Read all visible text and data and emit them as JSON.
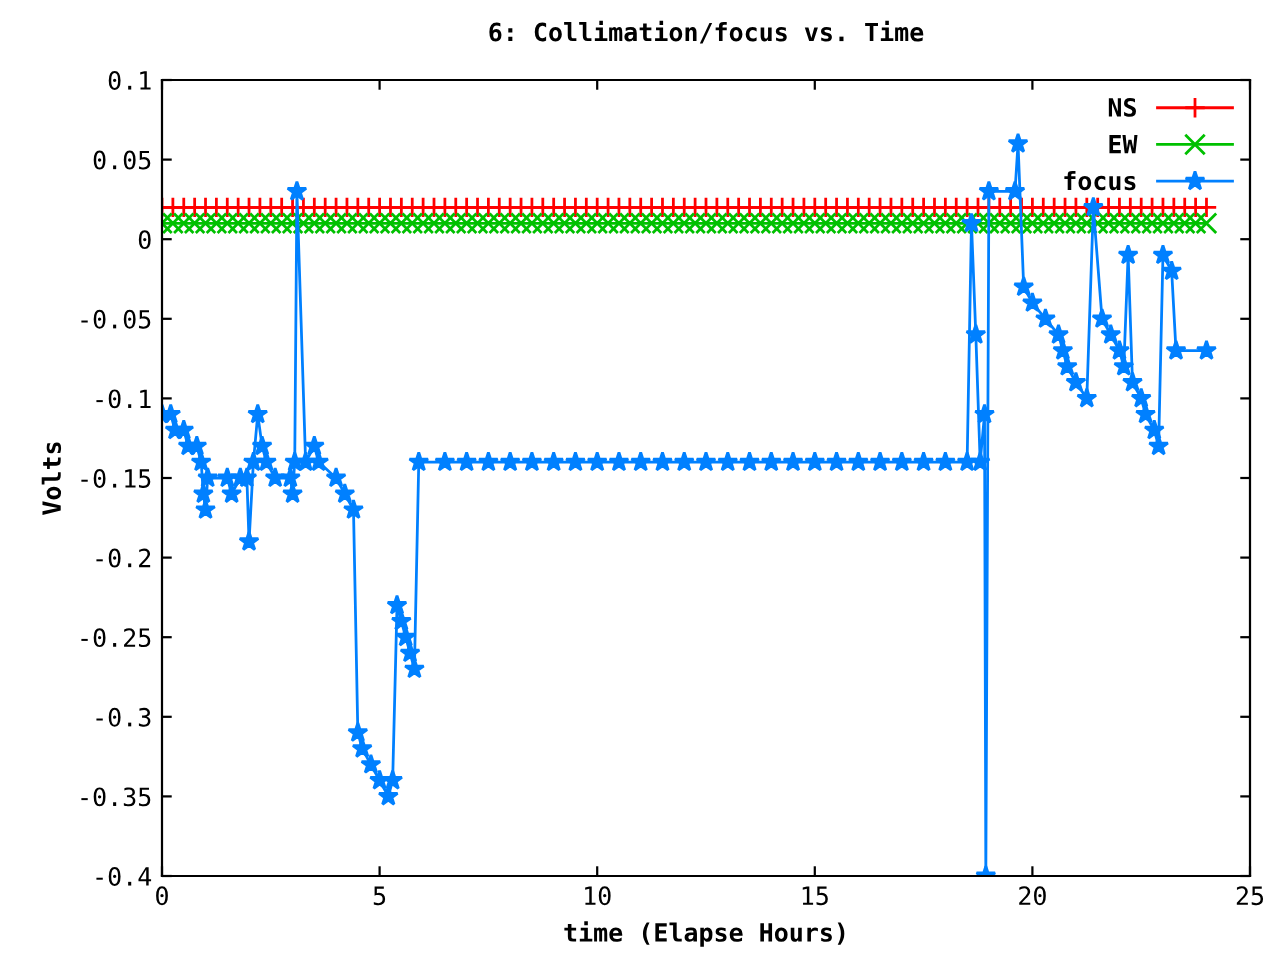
{
  "chart_data": {
    "type": "line",
    "title": "6: Collimation/focus vs. Time",
    "xlabel": "time (Elapse Hours)",
    "ylabel": "Volts",
    "xlim": [
      0,
      25
    ],
    "xticks": [
      0,
      5,
      10,
      15,
      20,
      25
    ],
    "ylim": [
      -0.4,
      0.1
    ],
    "yticks": [
      -0.4,
      -0.35,
      -0.3,
      -0.25,
      -0.2,
      -0.15,
      -0.1,
      -0.05,
      0,
      0.05,
      0.1
    ],
    "grid": false,
    "legend": "top right",
    "series": [
      {
        "name": "NS",
        "color": "#ff0000",
        "marker": "cross",
        "x": [
          0,
          0.25,
          0.5,
          0.75,
          1,
          1.25,
          1.5,
          1.75,
          2,
          2.25,
          2.5,
          2.75,
          3,
          3.25,
          3.5,
          3.75,
          4,
          4.25,
          4.5,
          4.75,
          5,
          5.25,
          5.5,
          5.75,
          6,
          6.25,
          6.5,
          6.75,
          7,
          7.25,
          7.5,
          7.75,
          8,
          8.25,
          8.5,
          8.75,
          9,
          9.25,
          9.5,
          9.75,
          10,
          10.25,
          10.5,
          10.75,
          11,
          11.25,
          11.5,
          11.75,
          12,
          12.25,
          12.5,
          12.75,
          13,
          13.25,
          13.5,
          13.75,
          14,
          14.25,
          14.5,
          14.75,
          15,
          15.25,
          15.5,
          15.75,
          16,
          16.25,
          16.5,
          16.75,
          17,
          17.25,
          17.5,
          17.75,
          18,
          18.25,
          18.5,
          18.75,
          19,
          19.25,
          19.5,
          19.75,
          20,
          20.25,
          20.5,
          20.75,
          21,
          21.25,
          21.5,
          21.75,
          22,
          22.25,
          22.5,
          22.75,
          23,
          23.25,
          23.5,
          23.75,
          24
        ],
        "values": [
          0.02,
          0.02,
          0.02,
          0.02,
          0.02,
          0.02,
          0.02,
          0.02,
          0.02,
          0.02,
          0.02,
          0.02,
          0.02,
          0.02,
          0.02,
          0.02,
          0.02,
          0.02,
          0.02,
          0.02,
          0.02,
          0.02,
          0.02,
          0.02,
          0.02,
          0.02,
          0.02,
          0.02,
          0.02,
          0.02,
          0.02,
          0.02,
          0.02,
          0.02,
          0.02,
          0.02,
          0.02,
          0.02,
          0.02,
          0.02,
          0.02,
          0.02,
          0.02,
          0.02,
          0.02,
          0.02,
          0.02,
          0.02,
          0.02,
          0.02,
          0.02,
          0.02,
          0.02,
          0.02,
          0.02,
          0.02,
          0.02,
          0.02,
          0.02,
          0.02,
          0.02,
          0.02,
          0.02,
          0.02,
          0.02,
          0.02,
          0.02,
          0.02,
          0.02,
          0.02,
          0.02,
          0.02,
          0.02,
          0.02,
          0.02,
          0.02,
          0.02,
          0.02,
          0.02,
          0.02,
          0.02,
          0.02,
          0.02,
          0.02,
          0.02,
          0.02,
          0.02,
          0.02,
          0.02,
          0.02,
          0.02,
          0.02,
          0.02,
          0.02,
          0.02,
          0.02,
          0.02
        ]
      },
      {
        "name": "EW",
        "color": "#00c000",
        "marker": "cross",
        "x": [
          0,
          0.25,
          0.5,
          0.75,
          1,
          1.25,
          1.5,
          1.75,
          2,
          2.25,
          2.5,
          2.75,
          3,
          3.25,
          3.5,
          3.75,
          4,
          4.25,
          4.5,
          4.75,
          5,
          5.25,
          5.5,
          5.75,
          6,
          6.25,
          6.5,
          6.75,
          7,
          7.25,
          7.5,
          7.75,
          8,
          8.25,
          8.5,
          8.75,
          9,
          9.25,
          9.5,
          9.75,
          10,
          10.25,
          10.5,
          10.75,
          11,
          11.25,
          11.5,
          11.75,
          12,
          12.25,
          12.5,
          12.75,
          13,
          13.25,
          13.5,
          13.75,
          14,
          14.25,
          14.5,
          14.75,
          15,
          15.25,
          15.5,
          15.75,
          16,
          16.25,
          16.5,
          16.75,
          17,
          17.25,
          17.5,
          17.75,
          18,
          18.25,
          18.5,
          18.75,
          19,
          19.25,
          19.5,
          19.75,
          20,
          20.25,
          20.5,
          20.75,
          21,
          21.25,
          21.5,
          21.75,
          22,
          22.25,
          22.5,
          22.75,
          23,
          23.25,
          23.5,
          23.75,
          24
        ],
        "values": [
          0.01,
          0.01,
          0.01,
          0.01,
          0.01,
          0.01,
          0.01,
          0.01,
          0.01,
          0.01,
          0.01,
          0.01,
          0.01,
          0.01,
          0.01,
          0.01,
          0.01,
          0.01,
          0.01,
          0.01,
          0.01,
          0.01,
          0.01,
          0.01,
          0.01,
          0.01,
          0.01,
          0.01,
          0.01,
          0.01,
          0.01,
          0.01,
          0.01,
          0.01,
          0.01,
          0.01,
          0.01,
          0.01,
          0.01,
          0.01,
          0.01,
          0.01,
          0.01,
          0.01,
          0.01,
          0.01,
          0.01,
          0.01,
          0.01,
          0.01,
          0.01,
          0.01,
          0.01,
          0.01,
          0.01,
          0.01,
          0.01,
          0.01,
          0.01,
          0.01,
          0.01,
          0.01,
          0.01,
          0.01,
          0.01,
          0.01,
          0.01,
          0.01,
          0.01,
          0.01,
          0.01,
          0.01,
          0.01,
          0.01,
          0.01,
          0.01,
          0.01,
          0.01,
          0.01,
          0.01,
          0.01,
          0.01,
          0.01,
          0.01,
          0.01,
          0.01,
          0.01,
          0.01,
          0.01,
          0.01,
          0.01,
          0.01,
          0.01,
          0.01,
          0.01,
          0.01,
          0.01
        ]
      },
      {
        "name": "focus",
        "color": "#0080ff",
        "marker": "star",
        "x": [
          0,
          0.2,
          0.3,
          0.5,
          0.6,
          0.8,
          0.9,
          0.95,
          1.0,
          1.05,
          1.5,
          1.6,
          1.8,
          1.95,
          2.0,
          2.1,
          2.2,
          2.3,
          2.4,
          2.6,
          2.95,
          3.0,
          3.05,
          3.1,
          3.3,
          3.5,
          3.6,
          4.0,
          4.2,
          4.4,
          4.5,
          4.6,
          4.8,
          5.0,
          5.2,
          5.3,
          5.4,
          5.5,
          5.6,
          5.7,
          5.8,
          5.9,
          6.5,
          7,
          7.5,
          8,
          8.5,
          9,
          9.5,
          10,
          10.5,
          11,
          11.5,
          12,
          12.5,
          13,
          13.5,
          14,
          14.5,
          15,
          15.5,
          16,
          16.5,
          17,
          17.5,
          18,
          18.5,
          18.6,
          18.7,
          18.8,
          18.9,
          18.93,
          19.0,
          19.6,
          19.67,
          19.8,
          20.0,
          20.3,
          20.6,
          20.7,
          20.8,
          21.0,
          21.25,
          21.4,
          21.6,
          21.8,
          22.0,
          22.1,
          22.2,
          22.3,
          22.5,
          22.6,
          22.8,
          22.9,
          23.0,
          23.2,
          23.3,
          24.0
        ],
        "values": [
          -0.11,
          -0.11,
          -0.12,
          -0.12,
          -0.13,
          -0.13,
          -0.14,
          -0.16,
          -0.17,
          -0.15,
          -0.15,
          -0.16,
          -0.15,
          -0.15,
          -0.19,
          -0.14,
          -0.11,
          -0.13,
          -0.14,
          -0.15,
          -0.15,
          -0.16,
          -0.14,
          0.03,
          -0.14,
          -0.13,
          -0.14,
          -0.15,
          -0.16,
          -0.17,
          -0.31,
          -0.32,
          -0.33,
          -0.34,
          -0.35,
          -0.34,
          -0.23,
          -0.24,
          -0.25,
          -0.26,
          -0.27,
          -0.14,
          -0.14,
          -0.14,
          -0.14,
          -0.14,
          -0.14,
          -0.14,
          -0.14,
          -0.14,
          -0.14,
          -0.14,
          -0.14,
          -0.14,
          -0.14,
          -0.14,
          -0.14,
          -0.14,
          -0.14,
          -0.14,
          -0.14,
          -0.14,
          -0.14,
          -0.14,
          -0.14,
          -0.14,
          -0.14,
          0.01,
          -0.06,
          -0.14,
          -0.11,
          -0.4,
          0.03,
          0.03,
          0.06,
          -0.03,
          -0.04,
          -0.05,
          -0.06,
          -0.07,
          -0.08,
          -0.09,
          -0.1,
          0.02,
          -0.05,
          -0.06,
          -0.07,
          -0.08,
          -0.01,
          -0.09,
          -0.1,
          -0.11,
          -0.12,
          -0.13,
          -0.01,
          -0.02,
          -0.07,
          -0.07
        ]
      }
    ]
  }
}
